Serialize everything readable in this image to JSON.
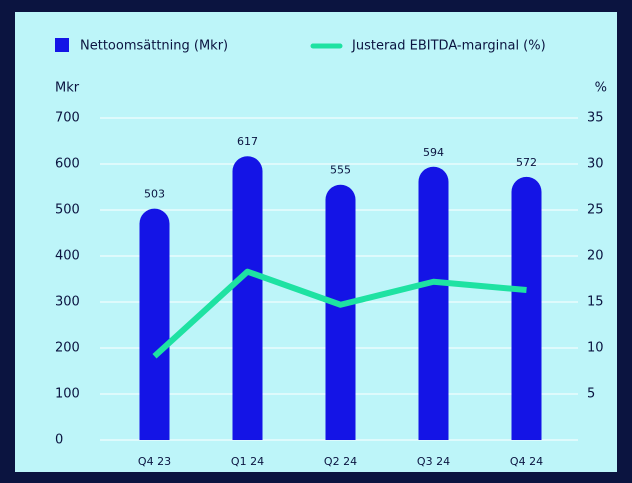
{
  "chart_data": {
    "type": "bar",
    "categories": [
      "Q4 23",
      "Q1 24",
      "Q2 24",
      "Q3 24",
      "Q4 24"
    ],
    "series": [
      {
        "name": "Nettoomsättning (Mkr)",
        "color": "#1414e6",
        "values": [
          503,
          617,
          555,
          594,
          572
        ]
      },
      {
        "name": "Justerad EBITDA-marginal (%)",
        "color": "#1ee2a2",
        "axis": "y2",
        "type": "line",
        "values": [
          9.1,
          18.3,
          14.7,
          17.2,
          16.3
        ]
      }
    ],
    "y_axis_label": "Mkr",
    "y2_axis_label": "%",
    "ylim": [
      0,
      700
    ],
    "yticks": [
      0,
      100,
      200,
      300,
      400,
      500,
      600,
      700
    ],
    "y2lim": [
      0,
      35
    ],
    "y2ticks": [
      5,
      10,
      15,
      20,
      25,
      30,
      35
    ],
    "grid": true,
    "legend": "top"
  }
}
